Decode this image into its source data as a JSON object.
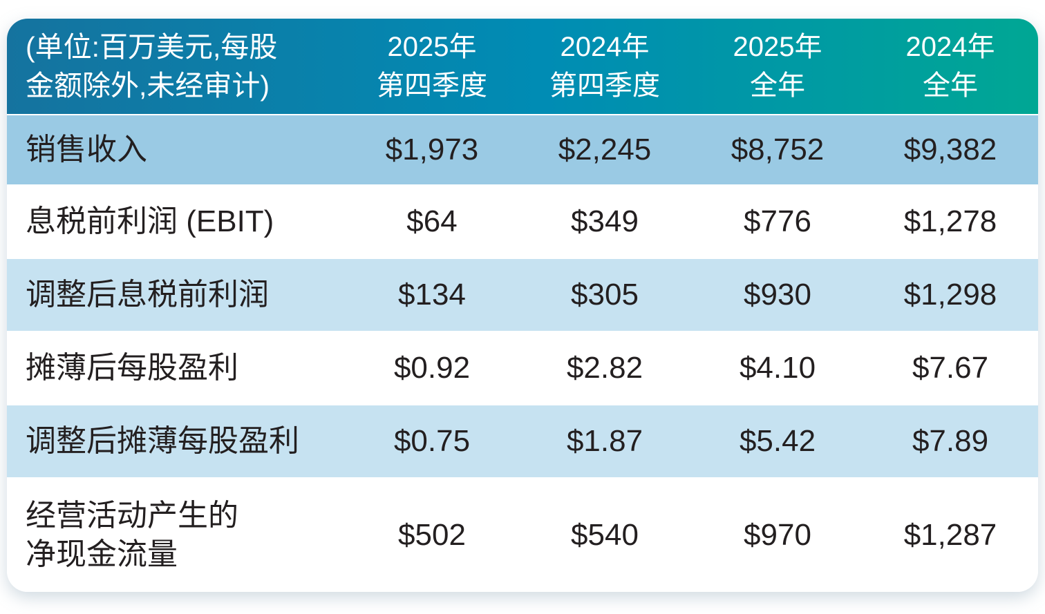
{
  "display": {
    "note_line1": "(单位:百万美元,每股",
    "note_line2": "金额除外,未经审计)",
    "columns": [
      {
        "line1": "2025年",
        "line2": "第四季度"
      },
      {
        "line1": "2024年",
        "line2": "第四季度"
      },
      {
        "line1": "2025年",
        "line2": "全年"
      },
      {
        "line1": "2024年",
        "line2": "全年"
      }
    ],
    "row_labels": [
      "销售收入",
      "息税前利润 (EBIT)",
      "调整后息税前利润",
      "摊薄后每股盈利",
      "调整后摊薄每股盈利",
      "经营活动产生的\n净现金流量"
    ]
  },
  "colors": {
    "header_gradient_start": "#15739f",
    "header_gradient_mid": "#008cb4",
    "header_gradient_end": "#00a794",
    "row_highlight_blue": "#9acae4",
    "row_light_blue": "#c6e2f1",
    "row_white": "#ffffff",
    "header_text": "#ffffff",
    "body_text": "#231f20"
  },
  "chart_data": {
    "type": "table",
    "unit_note": "(单位:百万美元,每股金额除外,未经审计)",
    "columns": [
      "2025年第四季度",
      "2024年第四季度",
      "2025年全年",
      "2024年全年"
    ],
    "rows": [
      {
        "label": "销售收入",
        "values": [
          "$1,973",
          "$2,245",
          "$8,752",
          "$9,382"
        ]
      },
      {
        "label": "息税前利润 (EBIT)",
        "values": [
          "$64",
          "$349",
          "$776",
          "$1,278"
        ]
      },
      {
        "label": "调整后息税前利润",
        "values": [
          "$134",
          "$305",
          "$930",
          "$1,298"
        ]
      },
      {
        "label": "摊薄后每股盈利",
        "values": [
          "$0.92",
          "$2.82",
          "$4.10",
          "$7.67"
        ]
      },
      {
        "label": "调整后摊薄每股盈利",
        "values": [
          "$0.75",
          "$1.87",
          "$5.42",
          "$7.89"
        ]
      },
      {
        "label": "经营活动产生的净现金流量",
        "values": [
          "$502",
          "$540",
          "$970",
          "$1,287"
        ]
      }
    ]
  }
}
